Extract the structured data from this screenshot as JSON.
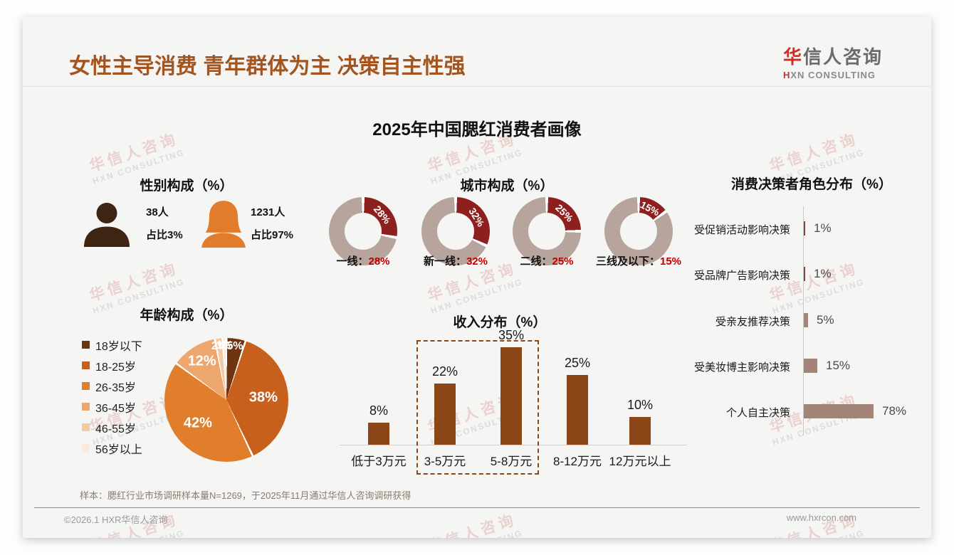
{
  "header": {
    "title": "女性主导消费 青年群体为主 决策自主性强",
    "logo_cn_accent": "华",
    "logo_cn_rest": "信人咨询",
    "logo_en_accent": "H",
    "logo_en_rest": "XN CONSULTING"
  },
  "main_title": "2025年中国腮红消费者画像",
  "gender": {
    "title": "性别构成（%）",
    "male": {
      "count": "38人",
      "share": "占比3%"
    },
    "female": {
      "count": "1231人",
      "share": "占比97%"
    }
  },
  "chart_data": [
    {
      "type": "donut-set",
      "title": "城市构成（%）",
      "items": [
        {
          "label": "一线",
          "value": 28
        },
        {
          "label": "新一线",
          "value": 32
        },
        {
          "label": "二线",
          "value": 25
        },
        {
          "label": "三线及以下",
          "value": 15
        }
      ],
      "highlight_color": "#8E1F1F",
      "rest_color": "#B7A49C",
      "value_suffix": "%"
    },
    {
      "type": "pie",
      "title": "年龄构成（%）",
      "categories": [
        "18岁以下",
        "18-25岁",
        "26-35岁",
        "36-45岁",
        "46-55岁",
        "56岁以上"
      ],
      "values": [
        5,
        38,
        42,
        12,
        2,
        1
      ],
      "colors": [
        "#6F3511",
        "#C6601C",
        "#E07E2B",
        "#EDA66C",
        "#F3CBA2",
        "#F9EADB"
      ],
      "start_angle_deg": 0,
      "legend_position": "left"
    },
    {
      "type": "bar",
      "title": "收入分布（%）",
      "categories": [
        "低于3万元",
        "3-5万元",
        "5-8万元",
        "8-12万元",
        "12万元以上"
      ],
      "values": [
        8,
        22,
        35,
        25,
        10
      ],
      "bar_color": "#8A4616",
      "highlight_box_categories": [
        "3-5万元",
        "5-8万元"
      ]
    },
    {
      "type": "hbar",
      "title": "消费决策者角色分布（%）",
      "categories": [
        "受促销活动影响决策",
        "受品牌广告影响决策",
        "受亲友推荐决策",
        "受美妆博主影响决策",
        "个人自主决策"
      ],
      "values": [
        1,
        1,
        5,
        15,
        78
      ],
      "bar_color": "#A28478"
    }
  ],
  "footnote": "样本：腮红行业市场调研样本量N=1269，于2025年11月通过华信人咨询调研获得",
  "footer": {
    "left": "©2026.1 HXR华信人咨询",
    "right": "www.hxrcon.com"
  },
  "watermark": {
    "line1": "华信人咨询",
    "line2": "HXN CONSULTING"
  },
  "colors": {
    "page_title": "#A4541E",
    "accent_red": "#C00000",
    "male_icon": "#3E2413",
    "female_icon": "#E07C2C"
  }
}
